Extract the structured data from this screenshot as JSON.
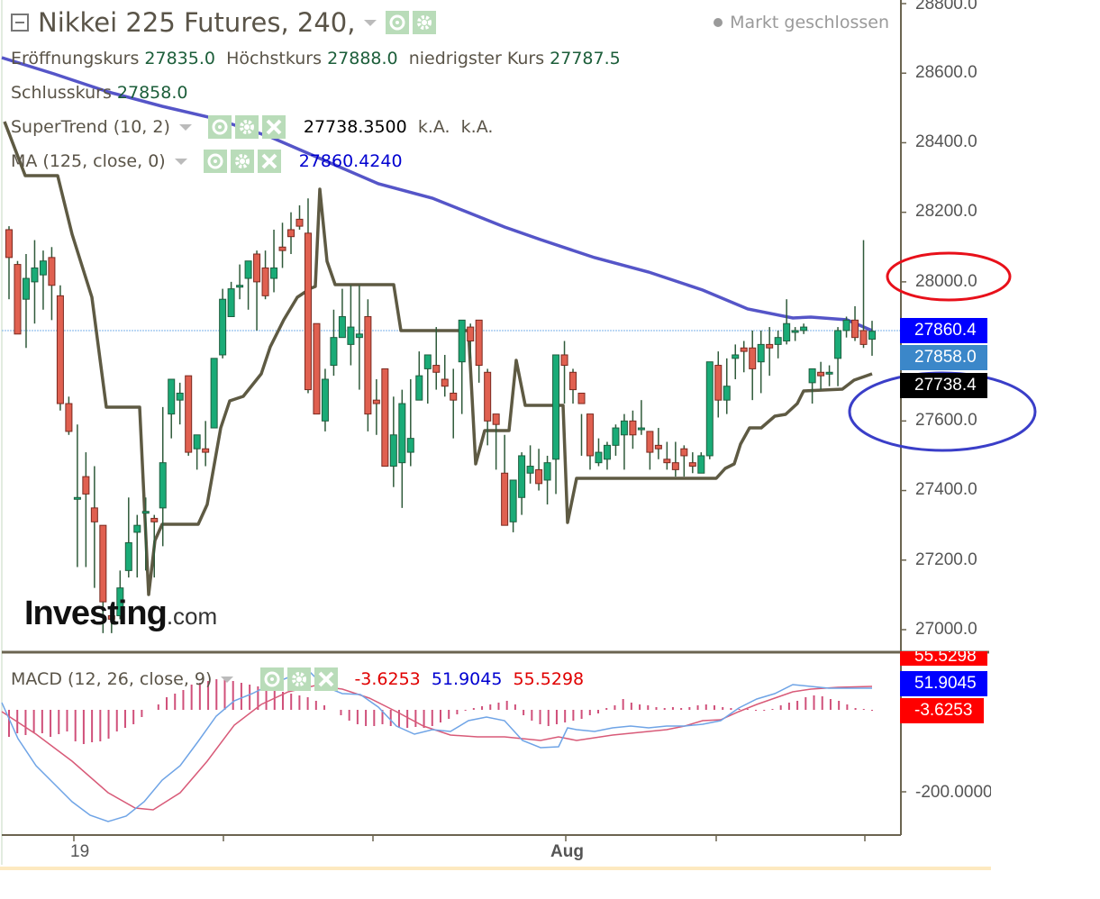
{
  "header": {
    "title": "Nikkei 225 Futures, 240,",
    "market_status": "Markt geschlossen",
    "ohlc": {
      "open_label": "Eröffnungskurs",
      "open_value": "27835.0",
      "high_label": "Höchstkurs",
      "high_value": "27888.0",
      "low_label": "niedrigster Kurs",
      "low_value": "27787.5",
      "close_label": "Schlusskurs",
      "close_value": "27858.0"
    }
  },
  "indicators": {
    "supertrend": {
      "label": "SuperTrend (10, 2)",
      "value": "27738.3500",
      "extra1": "k.A.",
      "extra2": "k.A."
    },
    "ma": {
      "label": "MA (125, close, 0)",
      "value": "27860.4240"
    },
    "macd": {
      "label": "MACD (12, 26, close, 9)",
      "hist": "-3.6253",
      "macd": "51.9045",
      "signal": "55.5298"
    }
  },
  "price_axis": {
    "ticks": [
      "28800.0",
      "28600.0",
      "28400.0",
      "28200.0",
      "28000.0",
      "27600.0",
      "27400.0",
      "27200.0",
      "27000.0"
    ],
    "tags": [
      {
        "value": "27860.4",
        "color": "#0000ff"
      },
      {
        "value": "27858.0",
        "color": "#3b87c9"
      },
      {
        "value": "27738.4",
        "color": "#000000"
      }
    ]
  },
  "macd_axis": {
    "ticks": [
      "-200.0000"
    ],
    "tags": [
      {
        "value": "55.5298",
        "color": "#ff0000"
      },
      {
        "value": "51.9045",
        "color": "#0000ff"
      },
      {
        "value": "-3.6253",
        "color": "#ff0000"
      }
    ]
  },
  "time_axis": {
    "labels": [
      "19",
      "Aug"
    ]
  },
  "logo": {
    "main": "Investing",
    "tld": ".com"
  },
  "annotations": [
    {
      "type": "ellipse",
      "color": "#e8101a",
      "around": "28000.0"
    },
    {
      "type": "ellipse",
      "color": "#3a3ec8",
      "around": "27600.0"
    }
  ],
  "chart_data": {
    "type": "candlestick",
    "title": "Nikkei 225 Futures, 240",
    "xlabel": "",
    "ylabel": "",
    "ylim": [
      26950,
      28820
    ],
    "x_tick_labels": [
      "19",
      "Aug"
    ],
    "last_bar": {
      "open": 27835.0,
      "high": 27888.0,
      "low": 27787.5,
      "close": 27858.0
    },
    "series": [
      {
        "name": "SuperTrend (10, 2)",
        "last_value": 27738.35
      },
      {
        "name": "MA (125, close, 0)",
        "last_value": 27860.424
      },
      {
        "name": "MACD line",
        "last_value": 51.9045
      },
      {
        "name": "Signal",
        "last_value": 55.5298
      },
      {
        "name": "Histogram",
        "last_value": -3.6253
      }
    ],
    "candles": [
      [
        28150,
        28160,
        27950,
        28070
      ],
      [
        28050,
        28060,
        27860,
        27850
      ],
      [
        27950,
        28080,
        27810,
        28010
      ],
      [
        28000,
        28120,
        27880,
        28040
      ],
      [
        28020,
        28090,
        27920,
        28060
      ],
      [
        28070,
        28100,
        27890,
        27990
      ],
      [
        27960,
        27990,
        27630,
        27650
      ],
      [
        27650,
        27670,
        27560,
        27570
      ],
      [
        27380,
        27590,
        27180,
        27380
      ],
      [
        27440,
        27510,
        27180,
        27390
      ],
      [
        27350,
        27470,
        27120,
        27310
      ],
      [
        27300,
        27290,
        26990,
        27080
      ],
      [
        27040,
        27060,
        26990,
        27030
      ],
      [
        27040,
        27170,
        27030,
        27120
      ],
      [
        27170,
        27380,
        27150,
        27250
      ],
      [
        27280,
        27330,
        27150,
        27300
      ],
      [
        27340,
        27380,
        27170,
        27340
      ],
      [
        27320,
        27330,
        27150,
        27310
      ],
      [
        27350,
        27640,
        27240,
        27480
      ],
      [
        27620,
        27690,
        27550,
        27720
      ],
      [
        27660,
        27710,
        27590,
        27680
      ],
      [
        27730,
        27720,
        27500,
        27510
      ],
      [
        27520,
        27530,
        27460,
        27560
      ],
      [
        27520,
        27600,
        27470,
        27510
      ],
      [
        27580,
        27770,
        27580,
        27780
      ],
      [
        27790,
        27980,
        27780,
        27950
      ],
      [
        27900,
        28000,
        27930,
        27980
      ],
      [
        27990,
        28050,
        27950,
        27990
      ],
      [
        28010,
        28040,
        27920,
        28060
      ],
      [
        28080,
        28090,
        27860,
        28000
      ],
      [
        28040,
        28090,
        27950,
        27960
      ],
      [
        28010,
        28150,
        27970,
        28040
      ],
      [
        28100,
        28170,
        28040,
        28090
      ],
      [
        28150,
        28200,
        28080,
        28130
      ],
      [
        28180,
        28220,
        28150,
        28160
      ],
      [
        28140,
        28240,
        27680,
        27690
      ],
      [
        27880,
        27880,
        27820,
        27620
      ],
      [
        27600,
        27750,
        27570,
        27720
      ],
      [
        27760,
        27920,
        27730,
        27840
      ],
      [
        27840,
        27980,
        27840,
        27900
      ],
      [
        27820,
        27990,
        27760,
        27870
      ],
      [
        27840,
        27990,
        27690,
        27850
      ],
      [
        27900,
        27950,
        27570,
        27620
      ],
      [
        27660,
        27720,
        27560,
        27650
      ],
      [
        27750,
        27710,
        27500,
        27470
      ],
      [
        27470,
        27670,
        27410,
        27560
      ],
      [
        27480,
        27690,
        27350,
        27650
      ],
      [
        27510,
        27720,
        27470,
        27550
      ],
      [
        27660,
        27800,
        27680,
        27730
      ],
      [
        27750,
        27790,
        27650,
        27790
      ],
      [
        27760,
        27870,
        27690,
        27740
      ],
      [
        27720,
        27790,
        27670,
        27700
      ],
      [
        27680,
        27750,
        27550,
        27660
      ],
      [
        27770,
        27880,
        27620,
        27890
      ],
      [
        27870,
        27880,
        27780,
        27830
      ],
      [
        27890,
        27890,
        27710,
        27760
      ],
      [
        27740,
        27750,
        27530,
        27600
      ],
      [
        27620,
        27610,
        27460,
        27590
      ],
      [
        27450,
        27560,
        27330,
        27300
      ],
      [
        27310,
        27360,
        27280,
        27430
      ],
      [
        27380,
        27510,
        27330,
        27500
      ],
      [
        27450,
        27530,
        27420,
        27470
      ],
      [
        27460,
        27520,
        27400,
        27420
      ],
      [
        27430,
        27500,
        27360,
        27480
      ],
      [
        27490,
        27660,
        27390,
        27790
      ],
      [
        27790,
        27830,
        27650,
        27760
      ],
      [
        27740,
        27750,
        27650,
        27690
      ],
      [
        27680,
        27620,
        27500,
        27650
      ],
      [
        27620,
        27610,
        27460,
        27500
      ],
      [
        27480,
        27550,
        27470,
        27510
      ],
      [
        27490,
        27540,
        27460,
        27530
      ],
      [
        27530,
        27590,
        27500,
        27580
      ],
      [
        27560,
        27620,
        27460,
        27600
      ],
      [
        27600,
        27630,
        27520,
        27560
      ],
      [
        27580,
        27660,
        27560,
        27580
      ],
      [
        27570,
        27570,
        27460,
        27510
      ],
      [
        27530,
        27580,
        27490,
        27520
      ],
      [
        27490,
        27540,
        27460,
        27480
      ],
      [
        27480,
        27540,
        27440,
        27460
      ],
      [
        27520,
        27530,
        27440,
        27500
      ],
      [
        27480,
        27510,
        27450,
        27470
      ],
      [
        27450,
        27510,
        27460,
        27500
      ],
      [
        27500,
        27740,
        27490,
        27770
      ],
      [
        27760,
        27800,
        27610,
        27660
      ],
      [
        27660,
        27780,
        27620,
        27700
      ],
      [
        27780,
        27820,
        27720,
        27790
      ],
      [
        27810,
        27830,
        27740,
        27800
      ],
      [
        27810,
        27860,
        27660,
        27750
      ],
      [
        27770,
        27860,
        27680,
        27820
      ],
      [
        27820,
        27870,
        27730,
        27810
      ],
      [
        27820,
        27860,
        27780,
        27840
      ],
      [
        27830,
        27950,
        27820,
        27880
      ],
      [
        27860,
        27870,
        27830,
        27860
      ],
      [
        27860,
        27880,
        27850,
        27870
      ],
      [
        27710,
        27750,
        27650,
        27750
      ],
      [
        27740,
        27770,
        27690,
        27730
      ],
      [
        27740,
        27760,
        27700,
        27740
      ],
      [
        27780,
        27870,
        27700,
        27860
      ],
      [
        27860,
        27900,
        27840,
        27890
      ],
      [
        27890,
        27930,
        27830,
        27840
      ],
      [
        27860,
        28120,
        27810,
        27820
      ],
      [
        27835,
        27888,
        27787.5,
        27858
      ]
    ]
  }
}
